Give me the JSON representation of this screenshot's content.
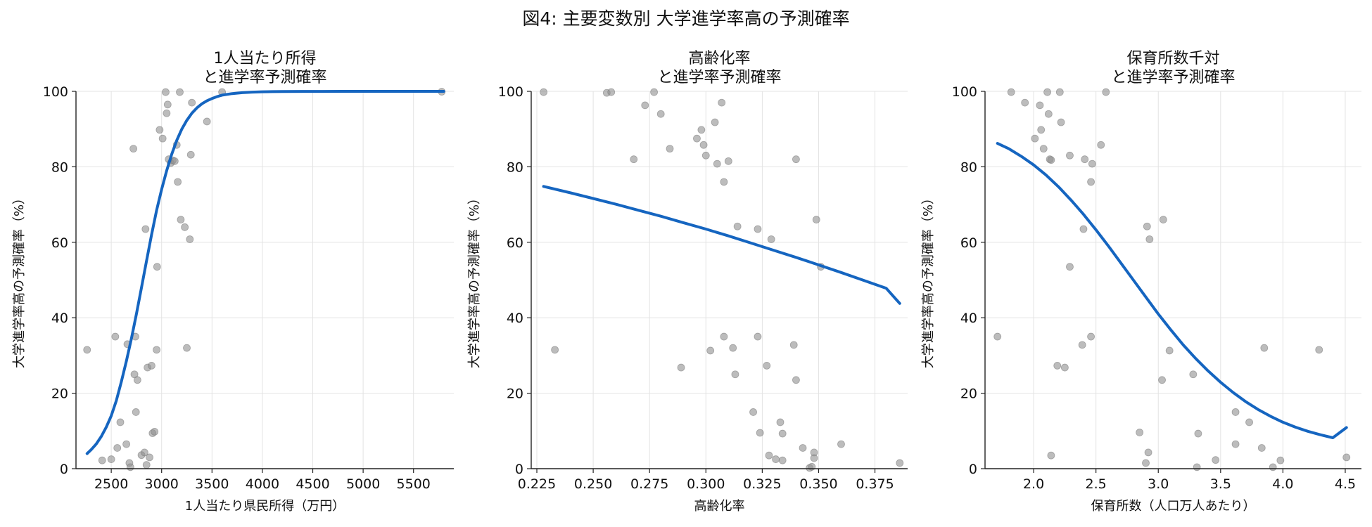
{
  "figure": {
    "suptitle": "図4: 主要変数別 大学進学率高の予測確率"
  },
  "colors": {
    "curve": "#1565c0",
    "points": "#8f8f8f"
  },
  "chart_data": [
    {
      "type": "scatter",
      "title": [
        "1人当たり所得",
        "と進学率予測確率"
      ],
      "xlabel": "1人当たり県民所得（万円）",
      "ylabel": "大学進学率高の予測確率（%）",
      "xlim": [
        2150,
        5900
      ],
      "ylim": [
        0,
        100
      ],
      "xticks": [
        2500,
        3000,
        3500,
        4000,
        4500,
        5000,
        5500
      ],
      "xtick_labels": [
        "2500",
        "3000",
        "3500",
        "4000",
        "4500",
        "5000",
        "5500"
      ],
      "yticks": [
        0,
        20,
        40,
        60,
        80,
        100
      ],
      "ytick_labels": [
        "0",
        "20",
        "40",
        "60",
        "80",
        "100"
      ],
      "grid": true,
      "points": [
        [
          2260,
          31.5
        ],
        [
          2410,
          2.2
        ],
        [
          2500,
          2.5
        ],
        [
          2540,
          35
        ],
        [
          2560,
          5.5
        ],
        [
          2590,
          12.3
        ],
        [
          2650,
          6.5
        ],
        [
          2660,
          33
        ],
        [
          2680,
          1.5
        ],
        [
          2690,
          0.4
        ],
        [
          2720,
          84.8
        ],
        [
          2730,
          25
        ],
        [
          2740,
          35
        ],
        [
          2745,
          15
        ],
        [
          2760,
          23.5
        ],
        [
          2800,
          3.6
        ],
        [
          2830,
          4.3
        ],
        [
          2840,
          63.5
        ],
        [
          2850,
          1
        ],
        [
          2860,
          26.8
        ],
        [
          2880,
          3
        ],
        [
          2900,
          27.3
        ],
        [
          2910,
          9.4
        ],
        [
          2930,
          9.8
        ],
        [
          2950,
          31.5
        ],
        [
          2955,
          53.5
        ],
        [
          2980,
          89.8
        ],
        [
          3010,
          87.5
        ],
        [
          3040,
          99.8
        ],
        [
          3050,
          94.2
        ],
        [
          3060,
          96.5
        ],
        [
          3070,
          82
        ],
        [
          3090,
          81
        ],
        [
          3110,
          81.7
        ],
        [
          3130,
          81.5
        ],
        [
          3150,
          85.8
        ],
        [
          3160,
          76
        ],
        [
          3180,
          99.8
        ],
        [
          3190,
          66
        ],
        [
          3230,
          64
        ],
        [
          3250,
          32
        ],
        [
          3280,
          60.8
        ],
        [
          3290,
          83.2
        ],
        [
          3300,
          97
        ],
        [
          3450,
          92
        ],
        [
          3600,
          99.8
        ],
        [
          5780,
          99.9
        ]
      ],
      "curve": {
        "name": "",
        "x": [
          2260,
          2300,
          2350,
          2400,
          2450,
          2500,
          2550,
          2600,
          2650,
          2700,
          2750,
          2800,
          2850,
          2900,
          2950,
          3000,
          3050,
          3100,
          3150,
          3200,
          3250,
          3300,
          3350,
          3400,
          3450,
          3500,
          3550,
          3600,
          3700,
          3800,
          3900,
          4000,
          4100,
          4200,
          4400,
          4600,
          4800,
          5000,
          5200,
          5400,
          5600,
          5800
        ],
        "y": [
          4,
          5,
          6.5,
          8.5,
          11,
          14,
          18,
          23,
          28.5,
          34.5,
          41,
          48,
          55,
          62,
          68.5,
          74,
          79,
          83.3,
          87,
          90,
          92.3,
          94.2,
          95.6,
          96.7,
          97.5,
          98.1,
          98.6,
          99,
          99.4,
          99.65,
          99.8,
          99.88,
          99.93,
          99.96,
          99.98,
          99.99,
          100,
          100,
          100,
          100,
          100,
          100
        ]
      }
    },
    {
      "type": "scatter",
      "title": [
        "高齢化率",
        "と進学率予測確率"
      ],
      "xlabel": "高齢化率",
      "ylabel": "大学進学率高の予測確率（%）",
      "xlim": [
        0.2225,
        0.3895
      ],
      "ylim": [
        0,
        100
      ],
      "xticks": [
        0.225,
        0.25,
        0.275,
        0.3,
        0.325,
        0.35,
        0.375
      ],
      "xtick_labels": [
        "0.225",
        "0.250",
        "0.275",
        "0.300",
        "0.325",
        "0.350",
        "0.375"
      ],
      "yticks": [
        0,
        20,
        40,
        60,
        80,
        100
      ],
      "ytick_labels": [
        "0",
        "20",
        "40",
        "60",
        "80",
        "100"
      ],
      "grid": true,
      "points": [
        [
          0.228,
          99.8
        ],
        [
          0.233,
          31.5
        ],
        [
          0.256,
          99.6
        ],
        [
          0.258,
          99.8
        ],
        [
          0.268,
          82
        ],
        [
          0.273,
          96.3
        ],
        [
          0.277,
          99.8
        ],
        [
          0.28,
          94
        ],
        [
          0.284,
          84.8
        ],
        [
          0.289,
          26.8
        ],
        [
          0.296,
          87.5
        ],
        [
          0.298,
          89.8
        ],
        [
          0.299,
          85.8
        ],
        [
          0.3,
          83
        ],
        [
          0.302,
          31.3
        ],
        [
          0.304,
          91.8
        ],
        [
          0.305,
          80.8
        ],
        [
          0.307,
          97
        ],
        [
          0.308,
          76
        ],
        [
          0.308,
          35
        ],
        [
          0.31,
          81.5
        ],
        [
          0.312,
          32
        ],
        [
          0.313,
          25
        ],
        [
          0.314,
          64.2
        ],
        [
          0.321,
          15
        ],
        [
          0.323,
          35
        ],
        [
          0.323,
          63.5
        ],
        [
          0.324,
          9.5
        ],
        [
          0.327,
          27.3
        ],
        [
          0.328,
          3.5
        ],
        [
          0.329,
          60.8
        ],
        [
          0.331,
          2.5
        ],
        [
          0.333,
          12.3
        ],
        [
          0.334,
          2.2
        ],
        [
          0.334,
          9.3
        ],
        [
          0.339,
          32.8
        ],
        [
          0.34,
          82
        ],
        [
          0.34,
          23.5
        ],
        [
          0.343,
          5.5
        ],
        [
          0.346,
          0.2
        ],
        [
          0.347,
          0.5
        ],
        [
          0.348,
          4.3
        ],
        [
          0.348,
          2.8
        ],
        [
          0.349,
          66
        ],
        [
          0.351,
          53.5
        ],
        [
          0.36,
          6.5
        ],
        [
          0.386,
          1.5
        ]
      ],
      "curve": {
        "name": "",
        "x": [
          0.228,
          0.24,
          0.25,
          0.26,
          0.27,
          0.28,
          0.29,
          0.3,
          0.31,
          0.32,
          0.33,
          0.34,
          0.35,
          0.36,
          0.37,
          0.38,
          0.386
        ],
        "y": [
          74.8,
          73.1,
          71.6,
          70.1,
          68.5,
          66.9,
          65.2,
          63.5,
          61.7,
          59.8,
          57.9,
          56,
          54,
          52,
          49.9,
          47.8,
          43.8
        ]
      }
    },
    {
      "type": "scatter",
      "title": [
        "保育所数千対",
        "と進学率予測確率"
      ],
      "xlabel": "保育所数（人口万人あたり）",
      "ylabel": "大学進学率高の予測確率（%）",
      "xlim": [
        1.61,
        4.63
      ],
      "ylim": [
        0,
        100
      ],
      "xticks": [
        2.0,
        2.5,
        3.0,
        3.5,
        4.0,
        4.5
      ],
      "xtick_labels": [
        "2.0",
        "2.5",
        "3.0",
        "3.5",
        "4.0",
        "4.5"
      ],
      "yticks": [
        0,
        20,
        40,
        60,
        80,
        100
      ],
      "ytick_labels": [
        "0",
        "20",
        "40",
        "60",
        "80",
        "100"
      ],
      "grid": true,
      "points": [
        [
          1.71,
          35
        ],
        [
          1.82,
          99.8
        ],
        [
          1.93,
          97
        ],
        [
          2.01,
          87.5
        ],
        [
          2.05,
          96.3
        ],
        [
          2.06,
          89.8
        ],
        [
          2.08,
          84.8
        ],
        [
          2.11,
          99.8
        ],
        [
          2.12,
          94
        ],
        [
          2.13,
          82
        ],
        [
          2.14,
          81.8
        ],
        [
          2.14,
          3.5
        ],
        [
          2.19,
          27.3
        ],
        [
          2.21,
          99.8
        ],
        [
          2.22,
          91.8
        ],
        [
          2.25,
          26.8
        ],
        [
          2.29,
          83
        ],
        [
          2.29,
          53.5
        ],
        [
          2.39,
          32.8
        ],
        [
          2.4,
          63.5
        ],
        [
          2.41,
          82
        ],
        [
          2.46,
          35
        ],
        [
          2.46,
          76
        ],
        [
          2.47,
          80.8
        ],
        [
          2.54,
          85.8
        ],
        [
          2.58,
          99.8
        ],
        [
          2.85,
          9.6
        ],
        [
          2.9,
          1.5
        ],
        [
          2.91,
          64.2
        ],
        [
          2.92,
          4.3
        ],
        [
          2.93,
          60.8
        ],
        [
          3.03,
          23.5
        ],
        [
          3.04,
          66
        ],
        [
          3.09,
          31.3
        ],
        [
          3.28,
          25
        ],
        [
          3.31,
          0.4
        ],
        [
          3.32,
          9.3
        ],
        [
          3.46,
          2.3
        ],
        [
          3.62,
          6.5
        ],
        [
          3.62,
          15
        ],
        [
          3.73,
          12.3
        ],
        [
          3.83,
          5.5
        ],
        [
          3.85,
          32
        ],
        [
          3.92,
          0.4
        ],
        [
          3.98,
          2.2
        ],
        [
          4.29,
          31.5
        ],
        [
          4.51,
          3
        ]
      ],
      "curve": {
        "name": "",
        "x": [
          1.71,
          1.8,
          1.9,
          2.0,
          2.1,
          2.2,
          2.3,
          2.4,
          2.5,
          2.6,
          2.7,
          2.8,
          2.9,
          3.0,
          3.1,
          3.2,
          3.3,
          3.4,
          3.5,
          3.6,
          3.7,
          3.8,
          3.9,
          4.0,
          4.1,
          4.2,
          4.3,
          4.4,
          4.51
        ],
        "y": [
          86.2,
          84.8,
          82.8,
          80.5,
          77.8,
          74.7,
          71.2,
          67.4,
          63.3,
          59,
          54.5,
          50,
          45.5,
          41,
          36.8,
          32.8,
          29.2,
          25.9,
          22.9,
          20.2,
          17.8,
          15.7,
          13.9,
          12.3,
          11,
          9.9,
          9,
          8.2,
          10.9
        ]
      }
    }
  ]
}
